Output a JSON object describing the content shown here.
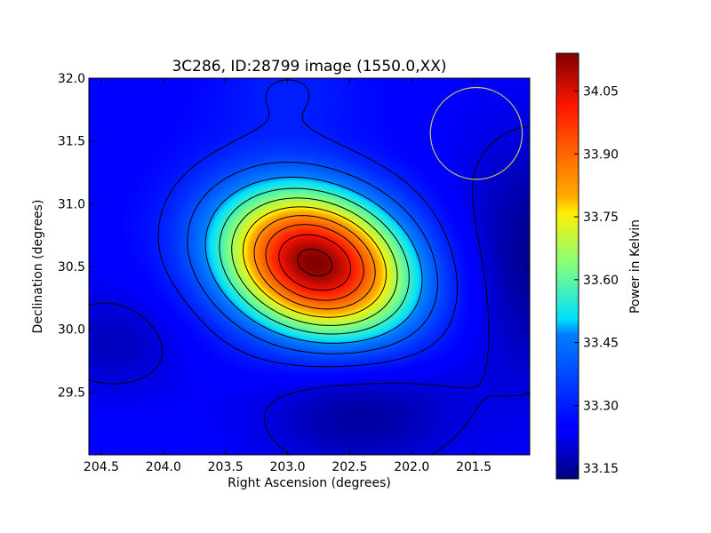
{
  "chart_data": {
    "type": "heatmap",
    "title": "3C286, ID:28799 image (1550.0,XX)",
    "xlabel": "Right Ascension (degrees)",
    "ylabel": "Declination (degrees)",
    "xlim": [
      204.6,
      201.05
    ],
    "ylim": [
      29.0,
      32.0
    ],
    "x_ticks": [
      "204.5",
      "204.0",
      "203.5",
      "203.0",
      "202.5",
      "202.0",
      "201.5"
    ],
    "x_tick_values": [
      204.5,
      204.0,
      203.5,
      203.0,
      202.5,
      202.0,
      201.5
    ],
    "y_ticks": [
      "29.5",
      "30.0",
      "30.5",
      "31.0",
      "31.5",
      "32.0"
    ],
    "y_tick_values": [
      29.5,
      30.0,
      30.5,
      31.0,
      31.5,
      32.0
    ],
    "colorbar": {
      "label": "Power in Kelvin",
      "min": 33.125,
      "max": 34.14,
      "ticks": [
        "33.15",
        "33.30",
        "33.45",
        "33.60",
        "33.75",
        "33.90",
        "34.05"
      ],
      "tick_values": [
        33.15,
        33.3,
        33.45,
        33.6,
        33.75,
        33.9,
        34.05
      ],
      "colormap": "jet"
    },
    "peak": {
      "ra": 202.78,
      "dec": 30.53,
      "value": 34.14
    },
    "background_value": 33.24,
    "beam_circle": {
      "ra": 201.48,
      "dec": 31.56,
      "radius_deg": 0.37,
      "color": "#c8c860"
    },
    "contour_color": "#000000",
    "grid": false
  }
}
